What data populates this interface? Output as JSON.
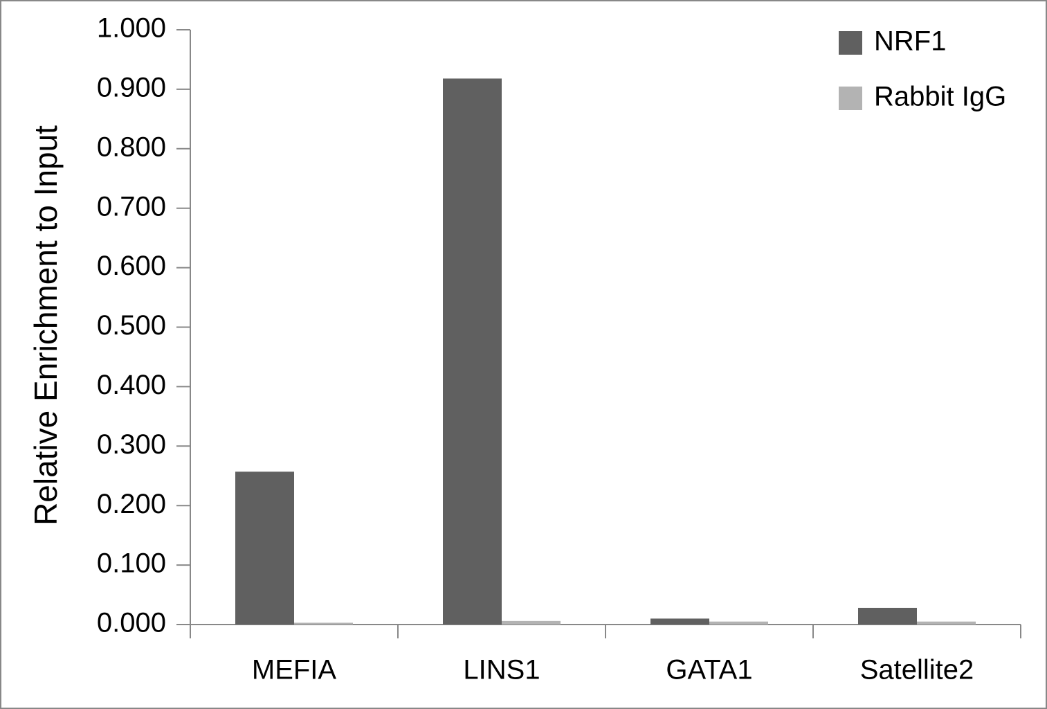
{
  "chart_data": {
    "type": "bar",
    "y_label": "Relative Enrichment to Input",
    "categories": [
      "MEFIA",
      "LINS1",
      "GATA1",
      "Satellite2"
    ],
    "series": [
      {
        "name": "NRF1",
        "color": "#606060",
        "values": [
          0.257,
          0.918,
          0.01,
          0.028
        ]
      },
      {
        "name": "Rabbit IgG",
        "color": "#b3b3b3",
        "values": [
          0.003,
          0.006,
          0.005,
          0.005
        ]
      }
    ],
    "ylim": [
      0,
      1
    ],
    "yticks": [
      {
        "value": 0,
        "label": "0.000"
      },
      {
        "value": 0.1,
        "label": "0.100"
      },
      {
        "value": 0.2,
        "label": "0.200"
      },
      {
        "value": 0.3,
        "label": "0.300"
      },
      {
        "value": 0.4,
        "label": "0.400"
      },
      {
        "value": 0.5,
        "label": "0.500"
      },
      {
        "value": 0.6,
        "label": "0.600"
      },
      {
        "value": 0.7,
        "label": "0.700"
      },
      {
        "value": 0.8,
        "label": "0.800"
      },
      {
        "value": 0.9,
        "label": "0.900"
      },
      {
        "value": 1,
        "label": "1.000"
      }
    ],
    "legend": "top-right",
    "grid": false
  }
}
